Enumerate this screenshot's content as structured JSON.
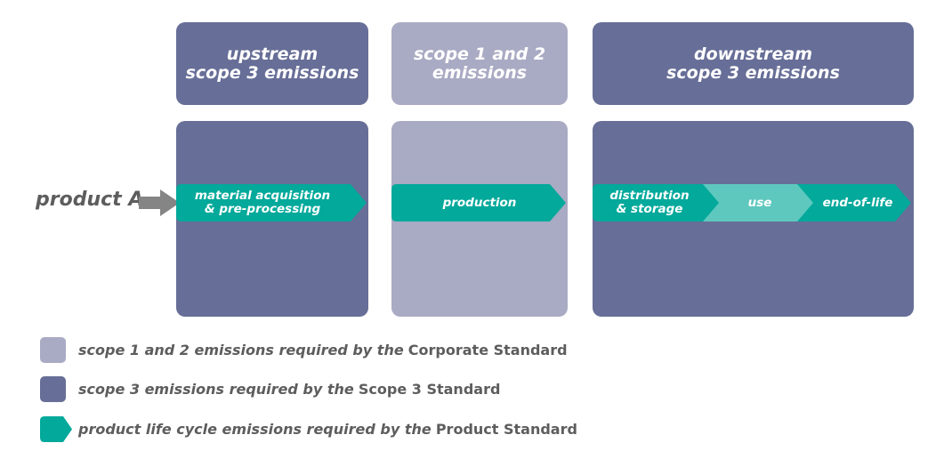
{
  "headers": {
    "upstream": [
      "upstream",
      "scope 3 emissions"
    ],
    "scope12": [
      "scope 1 and 2",
      "emissions"
    ],
    "downstream": [
      "downstream",
      "scope 3 emissions"
    ]
  },
  "product_label": "product A",
  "stages": {
    "material": [
      "material acquisition",
      "& pre-processing"
    ],
    "production": "production",
    "distribution": [
      "distribution",
      "& storage"
    ],
    "use": "use",
    "end_of_life": "end-of-life"
  },
  "legend": [
    {
      "italic": "scope 1 and 2 emissions required by the",
      "standard": "Corporate Standard"
    },
    {
      "italic": "scope 3 emissions required by the",
      "standard": "Scope 3 Standard"
    },
    {
      "italic": "product life cycle emissions required by the",
      "standard": "Product Standard"
    }
  ],
  "colors": {
    "dark_purple": "#676e97",
    "light_purple": "#a9aac3",
    "teal": "#03a99b",
    "light_teal": "#5ec8be",
    "gray_arrow": "#858585",
    "label_gray": "#5d5d5d"
  }
}
